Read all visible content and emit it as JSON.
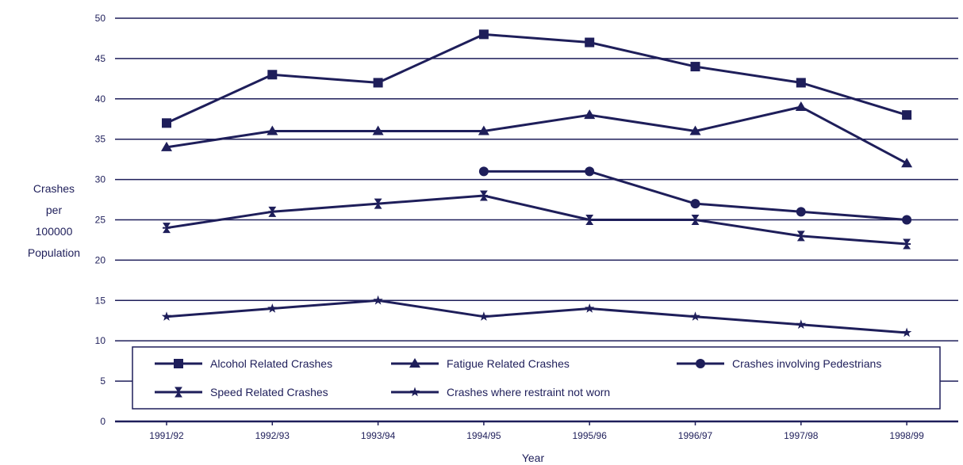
{
  "chart_data": {
    "type": "line",
    "title": "",
    "xlabel": "Year",
    "ylabel": "Crashes per 100000 Population",
    "ylabel_lines": [
      "Crashes",
      "per",
      "100000",
      "Population"
    ],
    "categories": [
      "1991/92",
      "1992/93",
      "1993/94",
      "1994/95",
      "1995/96",
      "1996/97",
      "1997/98",
      "1998/99"
    ],
    "ylim": [
      0,
      50
    ],
    "yticks": [
      0,
      5,
      10,
      15,
      20,
      25,
      30,
      35,
      40,
      45,
      50
    ],
    "grid": true,
    "legend_position": "bottom",
    "series": [
      {
        "name": "Alcohol Related Crashes",
        "marker": "square",
        "values": [
          37,
          43,
          42,
          48,
          47,
          44,
          42,
          38
        ]
      },
      {
        "name": "Fatigue Related Crashes",
        "marker": "triangle",
        "values": [
          34,
          36,
          36,
          36,
          38,
          36,
          39,
          32
        ]
      },
      {
        "name": "Crashes involving Pedestrians",
        "marker": "circle",
        "values": [
          null,
          null,
          null,
          31,
          31,
          27,
          26,
          25
        ]
      },
      {
        "name": "Speed Related Crashes",
        "marker": "hourglass",
        "values": [
          24,
          26,
          27,
          28,
          25,
          25,
          23,
          22
        ]
      },
      {
        "name": "Crashes where restraint not worn",
        "marker": "star",
        "values": [
          13,
          14,
          15,
          13,
          14,
          13,
          12,
          11
        ]
      }
    ]
  },
  "colors": {
    "line": "#1e1e5a",
    "background": "#ffffff"
  }
}
